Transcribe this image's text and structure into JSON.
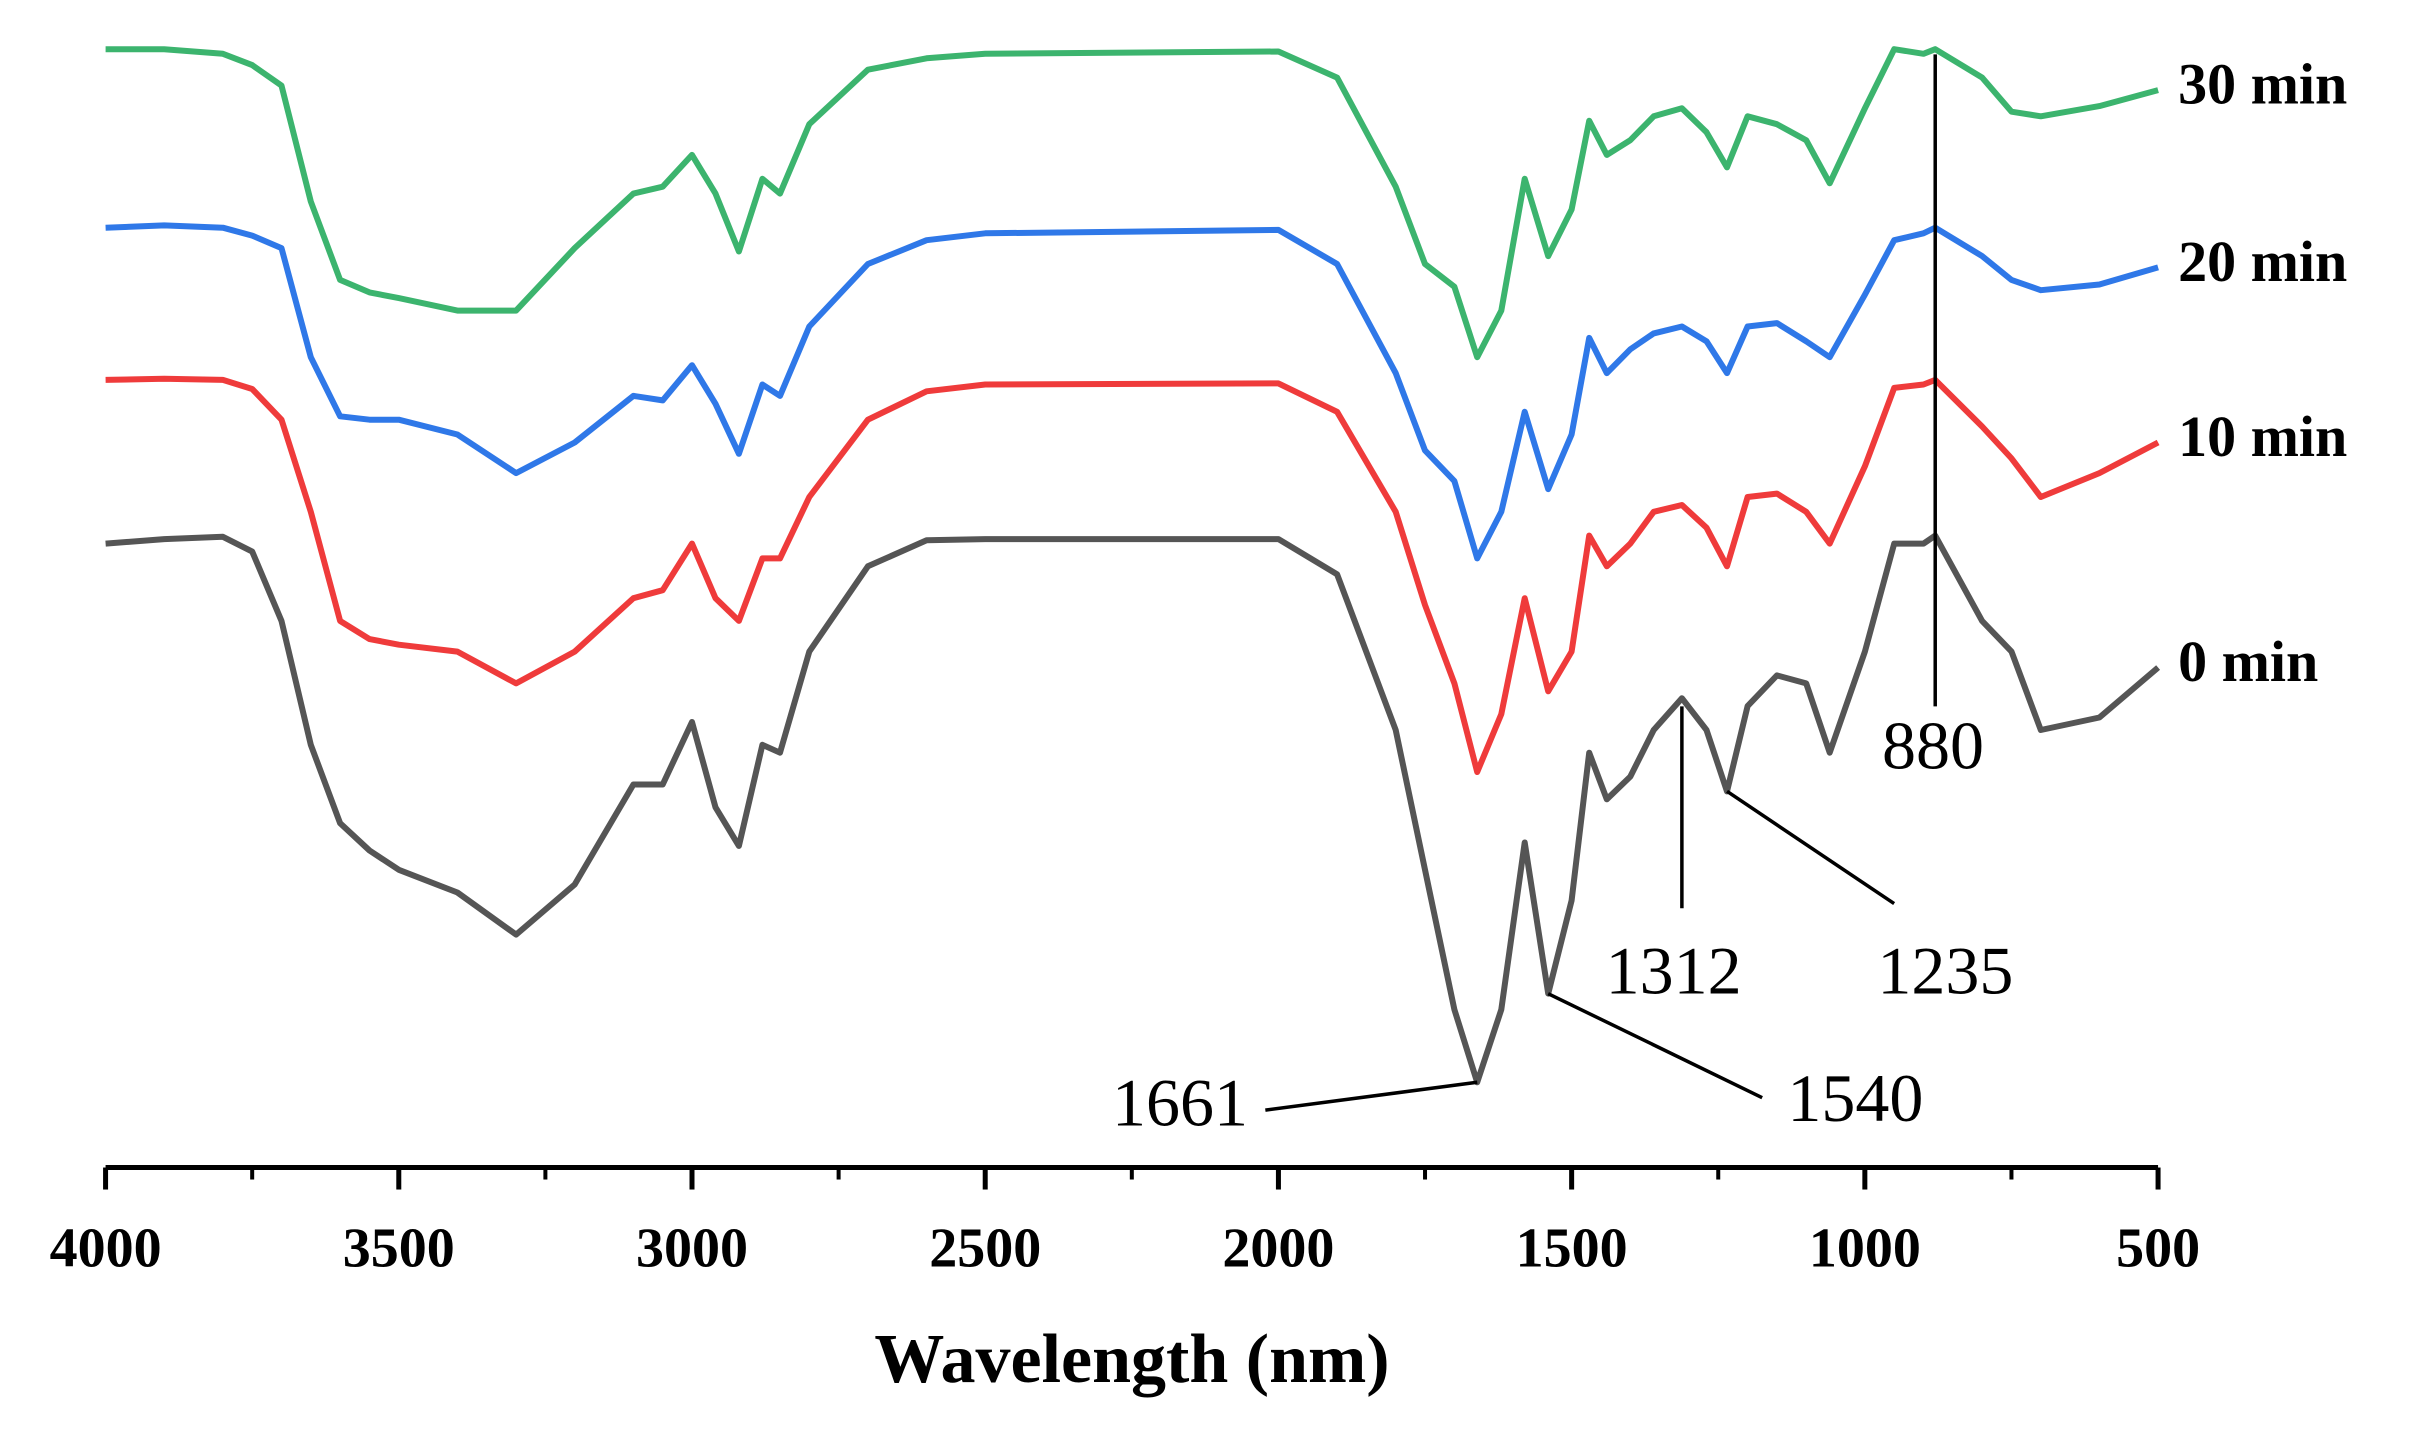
{
  "chart_data": {
    "type": "line",
    "xlabel": "Wavelength (nm)",
    "xlim": [
      4000,
      500
    ],
    "xticks": [
      4000,
      3500,
      3000,
      2500,
      2000,
      1500,
      1000,
      500
    ],
    "xminorticks": [
      3750,
      3250,
      2750,
      2250,
      1750,
      1250,
      750
    ],
    "ylim": [
      0,
      100
    ],
    "grid": false,
    "x": [
      4000,
      3900,
      3800,
      3750,
      3700,
      3650,
      3600,
      3550,
      3500,
      3400,
      3300,
      3200,
      3100,
      3050,
      3000,
      2960,
      2920,
      2880,
      2850,
      2800,
      2700,
      2600,
      2500,
      2000,
      1900,
      1800,
      1750,
      1700,
      1661,
      1620,
      1580,
      1540,
      1500,
      1470,
      1440,
      1400,
      1360,
      1312,
      1270,
      1235,
      1200,
      1150,
      1100,
      1060,
      1000,
      950,
      900,
      880,
      800,
      750,
      700,
      600,
      500
    ],
    "series": [
      {
        "name": "0 min",
        "color": "#555555",
        "values": [
          54.9,
          55.3,
          55.5,
          54.2,
          48.1,
          37.2,
          30.3,
          27.9,
          26.2,
          24.2,
          20.5,
          24.9,
          33.7,
          33.7,
          39.2,
          31.7,
          28.3,
          37.2,
          36.5,
          45.4,
          52.9,
          55.2,
          55.3,
          55.3,
          52.2,
          38.5,
          26.2,
          13.9,
          7.5,
          13.9,
          28.6,
          15.3,
          23.5,
          36.5,
          32.4,
          34.4,
          38.5,
          41.3,
          38.5,
          33.1,
          40.6,
          43.3,
          42.6,
          36.5,
          45.4,
          54.9,
          54.9,
          55.6,
          48.1,
          45.4,
          38.5,
          39.6,
          44.0
        ]
      },
      {
        "name": "10 min",
        "color": "#ef3b3b",
        "values": [
          69.3,
          69.4,
          69.3,
          68.5,
          65.8,
          57.7,
          48.1,
          46.5,
          46.0,
          45.4,
          42.6,
          45.4,
          50.1,
          50.8,
          54.9,
          50.1,
          48.1,
          53.6,
          53.6,
          59.0,
          65.8,
          68.3,
          68.9,
          69.0,
          66.5,
          57.7,
          49.5,
          42.6,
          34.8,
          39.9,
          50.1,
          41.9,
          45.4,
          55.6,
          52.9,
          54.9,
          57.7,
          58.3,
          56.3,
          52.9,
          59.0,
          59.3,
          57.7,
          54.9,
          61.7,
          68.6,
          68.9,
          69.3,
          65.2,
          62.4,
          59.0,
          61.1,
          63.8
        ]
      },
      {
        "name": "20 min",
        "color": "#2f78e8",
        "values": [
          82.7,
          82.9,
          82.7,
          82.0,
          80.9,
          71.3,
          66.1,
          65.8,
          65.8,
          64.5,
          61.1,
          63.8,
          67.9,
          67.5,
          70.6,
          67.2,
          62.8,
          68.9,
          67.9,
          74.0,
          79.5,
          81.6,
          82.2,
          82.5,
          79.5,
          69.9,
          63.1,
          60.4,
          53.6,
          57.7,
          66.5,
          59.7,
          64.5,
          73.0,
          69.9,
          72.0,
          73.4,
          74.0,
          72.7,
          69.9,
          74.0,
          74.3,
          72.7,
          71.3,
          76.8,
          81.6,
          82.2,
          82.7,
          80.2,
          78.1,
          77.2,
          77.7,
          79.2
        ]
      },
      {
        "name": "30 min",
        "color": "#3cb46e",
        "values": [
          98.4,
          98.4,
          98.0,
          97.0,
          95.2,
          85.0,
          78.1,
          77.0,
          76.5,
          75.4,
          75.4,
          80.9,
          85.7,
          86.3,
          89.1,
          85.7,
          80.6,
          87.0,
          85.7,
          91.8,
          96.6,
          97.6,
          98.0,
          98.2,
          95.9,
          86.3,
          79.5,
          77.5,
          71.3,
          75.4,
          87.0,
          80.2,
          84.3,
          92.1,
          89.1,
          90.4,
          92.5,
          93.2,
          91.1,
          88.0,
          92.5,
          91.8,
          90.4,
          86.6,
          93.2,
          98.4,
          98.0,
          98.4,
          95.9,
          92.9,
          92.5,
          93.4,
          94.8
        ]
      }
    ],
    "annotations": [
      {
        "text": "1661",
        "x": 1661
      },
      {
        "text": "1540",
        "x": 1540
      },
      {
        "text": "1312",
        "x": 1312
      },
      {
        "text": "1235",
        "x": 1235
      },
      {
        "text": "880",
        "x": 880
      }
    ]
  }
}
